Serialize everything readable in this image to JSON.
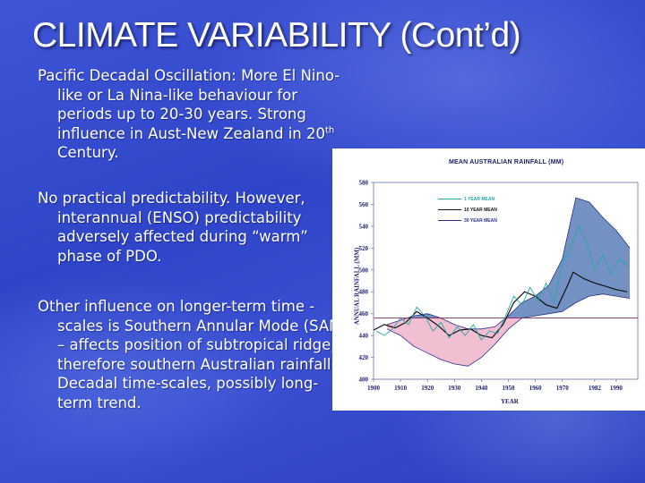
{
  "slide": {
    "title": "CLIMATE VARIABILITY (Cont’d)",
    "bullets": [
      {
        "before_sup": "Pacific Decadal Oscillation: More El Nino-like or La Nina-like behaviour for periods up to 20-30 years. Strong influence in Aust-New Zealand in 20",
        "sup": "th",
        "after_sup": " Century."
      },
      {
        "text": "No practical predictability. However, interannual (ENSO) predictability adversely affected during “warm” phase of PDO."
      },
      {
        "text": "Other influence on longer-term time -scales is Southern Annular Mode (SAM) – affects position of subtropical ridge, therefore southern Australian rainfall. Decadal time-scales, possibly long-term trend."
      }
    ]
  },
  "chart_data": {
    "type": "line",
    "title": "MEAN AUSTRALIAN RAINFALL (MM)",
    "xlabel": "YEAR",
    "ylabel": "ANNUAL RAINFALL (MM)",
    "x_ticks": [
      1900,
      1910,
      1920,
      1930,
      1940,
      1950,
      1960,
      1970,
      1982,
      1990
    ],
    "x_tick_labels": [
      "1900",
      "1910",
      "1920",
      "1930",
      "1940",
      "1950",
      "1960",
      "1970",
      "1982",
      "1990"
    ],
    "y_ticks": [
      400,
      420,
      440,
      460,
      480,
      500,
      520,
      540,
      560,
      580
    ],
    "ylim": [
      400,
      580
    ],
    "xlim": [
      1900,
      1998
    ],
    "reference_line": 456,
    "fill_above_color": "#5b7fb8",
    "fill_below_color": "#f0b8cc",
    "legend": [
      {
        "label": "1 YEAR MEAN",
        "color": "#27a6a6"
      },
      {
        "label": "10 YEAR MEAN",
        "color": "#111111"
      },
      {
        "label": "30 YEAR MEAN",
        "color": "#2a2f8a"
      }
    ],
    "series": [
      {
        "name": "10 YEAR MEAN",
        "x": [
          1900,
          1904,
          1908,
          1912,
          1916,
          1920,
          1924,
          1928,
          1932,
          1936,
          1940,
          1944,
          1948,
          1952,
          1956,
          1960,
          1964,
          1968,
          1972,
          1974,
          1978,
          1982,
          1986,
          1990,
          1994
        ],
        "values": [
          445,
          450,
          447,
          452,
          462,
          456,
          449,
          440,
          445,
          446,
          440,
          438,
          450,
          470,
          480,
          476,
          468,
          465,
          486,
          498,
          492,
          488,
          485,
          482,
          480
        ]
      },
      {
        "name": "30 YEAR MEAN",
        "x": [
          1905,
          1910,
          1915,
          1920,
          1925,
          1930,
          1935,
          1940,
          1945,
          1950,
          1955,
          1960,
          1965,
          1970,
          1975,
          1980,
          1985,
          1990,
          1995
        ],
        "upper": [
          450,
          454,
          458,
          460,
          456,
          450,
          446,
          446,
          448,
          458,
          470,
          476,
          486,
          510,
          566,
          562,
          548,
          536,
          520
        ],
        "lower": [
          446,
          440,
          430,
          424,
          418,
          414,
          412,
          420,
          432,
          446,
          456,
          458,
          460,
          462,
          470,
          476,
          478,
          476,
          474
        ]
      },
      {
        "name": "1 YEAR MEAN",
        "x": [
          1901,
          1904,
          1907,
          1910,
          1913,
          1916,
          1919,
          1922,
          1925,
          1928,
          1931,
          1934,
          1937,
          1940,
          1943,
          1946,
          1949,
          1952,
          1955,
          1958,
          1961,
          1964,
          1967,
          1970,
          1973,
          1976,
          1979,
          1982,
          1985,
          1988,
          1991,
          1994
        ],
        "values": [
          444,
          440,
          446,
          456,
          450,
          466,
          458,
          444,
          452,
          438,
          448,
          440,
          450,
          436,
          444,
          442,
          458,
          476,
          468,
          484,
          472,
          488,
          470,
          506,
          520,
          540,
          525,
          500,
          514,
          496,
          510,
          504
        ]
      }
    ]
  }
}
